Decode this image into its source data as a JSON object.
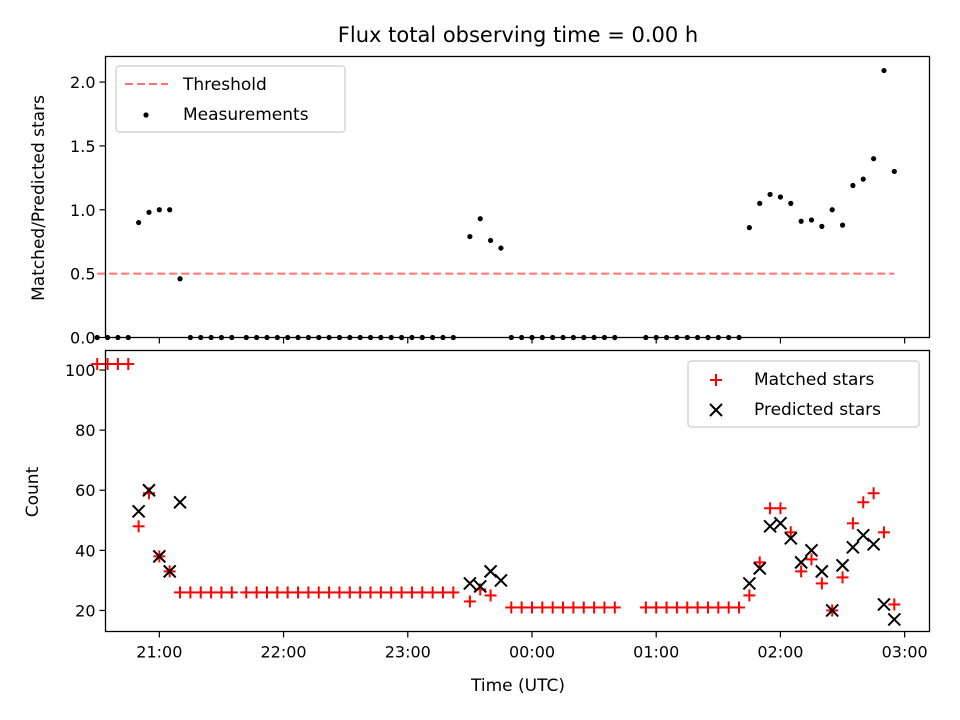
{
  "chart_data": [
    {
      "type": "scatter",
      "title": "Flux total observing time = 0.00 h",
      "xlabel": "",
      "ylabel": "Matched/Predicted stars",
      "ylim": [
        0,
        2.2
      ],
      "yticks": [
        0.0,
        0.5,
        1.0,
        1.5,
        2.0
      ],
      "ytick_labels": [
        "0.0",
        "0.5",
        "1.0",
        "1.5",
        "2.0"
      ],
      "xlim": [
        "20:34",
        "03:12"
      ],
      "xticks": [
        "21:00",
        "22:00",
        "23:00",
        "00:00",
        "01:00",
        "02:00",
        "03:00"
      ],
      "legend": "upper-left",
      "threshold": {
        "name": "Threshold",
        "color": "#ff7070",
        "value": 0.5,
        "x": [
          "20:30",
          "02:55"
        ]
      },
      "series": [
        {
          "name": "Measurements",
          "color": "#000000",
          "points": [
            [
              "20:30",
              0
            ],
            [
              "20:35",
              0
            ],
            [
              "20:40",
              0
            ],
            [
              "20:45",
              0
            ],
            [
              "20:50",
              0.9
            ],
            [
              "20:55",
              0.98
            ],
            [
              "21:00",
              1.0
            ],
            [
              "21:05",
              1.0
            ],
            [
              "21:10",
              0.46
            ],
            [
              "21:15",
              0
            ],
            [
              "21:20",
              0
            ],
            [
              "21:25",
              0
            ],
            [
              "21:30",
              0
            ],
            [
              "21:35",
              0
            ],
            [
              "21:42",
              0
            ],
            [
              "21:47",
              0
            ],
            [
              "21:52",
              0
            ],
            [
              "21:57",
              0
            ],
            [
              "22:02",
              0
            ],
            [
              "22:07",
              0
            ],
            [
              "22:12",
              0
            ],
            [
              "22:17",
              0
            ],
            [
              "22:22",
              0
            ],
            [
              "22:27",
              0
            ],
            [
              "22:32",
              0
            ],
            [
              "22:37",
              0
            ],
            [
              "22:42",
              0
            ],
            [
              "22:47",
              0
            ],
            [
              "22:52",
              0
            ],
            [
              "22:57",
              0
            ],
            [
              "23:02",
              0
            ],
            [
              "23:07",
              0
            ],
            [
              "23:12",
              0
            ],
            [
              "23:17",
              0
            ],
            [
              "23:22",
              0
            ],
            [
              "23:30",
              0.79
            ],
            [
              "23:35",
              0.93
            ],
            [
              "23:40",
              0.76
            ],
            [
              "23:45",
              0.7
            ],
            [
              "23:50",
              0
            ],
            [
              "23:55",
              0
            ],
            [
              "00:00",
              0
            ],
            [
              "00:05",
              0
            ],
            [
              "00:10",
              0
            ],
            [
              "00:15",
              0
            ],
            [
              "00:20",
              0
            ],
            [
              "00:25",
              0
            ],
            [
              "00:30",
              0
            ],
            [
              "00:35",
              0
            ],
            [
              "00:40",
              0
            ],
            [
              "00:55",
              0
            ],
            [
              "01:00",
              0
            ],
            [
              "01:05",
              0
            ],
            [
              "01:10",
              0
            ],
            [
              "01:15",
              0
            ],
            [
              "01:20",
              0
            ],
            [
              "01:25",
              0
            ],
            [
              "01:30",
              0
            ],
            [
              "01:35",
              0
            ],
            [
              "01:40",
              0
            ],
            [
              "01:45",
              0.86
            ],
            [
              "01:50",
              1.05
            ],
            [
              "01:55",
              1.12
            ],
            [
              "02:00",
              1.1
            ],
            [
              "02:05",
              1.05
            ],
            [
              "02:10",
              0.91
            ],
            [
              "02:15",
              0.92
            ],
            [
              "02:20",
              0.87
            ],
            [
              "02:25",
              1.0
            ],
            [
              "02:30",
              0.88
            ],
            [
              "02:35",
              1.19
            ],
            [
              "02:40",
              1.24
            ],
            [
              "02:45",
              1.4
            ],
            [
              "02:50",
              2.09
            ],
            [
              "02:55",
              1.3
            ]
          ]
        }
      ]
    },
    {
      "type": "scatter",
      "title": "",
      "xlabel": "Time (UTC)",
      "ylabel": "Count",
      "ylim": [
        13,
        106.5
      ],
      "yticks": [
        20,
        40,
        60,
        80,
        100
      ],
      "ytick_labels": [
        "20",
        "40",
        "60",
        "80",
        "100"
      ],
      "xlim": [
        "20:34",
        "03:12"
      ],
      "xticks": [
        "21:00",
        "22:00",
        "23:00",
        "00:00",
        "01:00",
        "02:00",
        "03:00"
      ],
      "xtick_labels": [
        "21:00",
        "22:00",
        "23:00",
        "00:00",
        "01:00",
        "02:00",
        "03:00"
      ],
      "legend": "upper-right",
      "series": [
        {
          "name": "Matched stars",
          "marker": "+",
          "color": "#ff0000",
          "points": [
            [
              "20:30",
              102
            ],
            [
              "20:35",
              102
            ],
            [
              "20:40",
              102
            ],
            [
              "20:45",
              102
            ],
            [
              "20:50",
              48
            ],
            [
              "20:55",
              59
            ],
            [
              "21:00",
              38
            ],
            [
              "21:05",
              33
            ],
            [
              "21:10",
              26
            ],
            [
              "21:15",
              26
            ],
            [
              "21:20",
              26
            ],
            [
              "21:25",
              26
            ],
            [
              "21:30",
              26
            ],
            [
              "21:35",
              26
            ],
            [
              "21:42",
              26
            ],
            [
              "21:47",
              26
            ],
            [
              "21:52",
              26
            ],
            [
              "21:57",
              26
            ],
            [
              "22:02",
              26
            ],
            [
              "22:07",
              26
            ],
            [
              "22:12",
              26
            ],
            [
              "22:17",
              26
            ],
            [
              "22:22",
              26
            ],
            [
              "22:27",
              26
            ],
            [
              "22:32",
              26
            ],
            [
              "22:37",
              26
            ],
            [
              "22:42",
              26
            ],
            [
              "22:47",
              26
            ],
            [
              "22:52",
              26
            ],
            [
              "22:57",
              26
            ],
            [
              "23:02",
              26
            ],
            [
              "23:07",
              26
            ],
            [
              "23:12",
              26
            ],
            [
              "23:17",
              26
            ],
            [
              "23:22",
              26
            ],
            [
              "23:30",
              23
            ],
            [
              "23:35",
              27
            ],
            [
              "23:40",
              25
            ],
            [
              "23:50",
              21
            ],
            [
              "23:55",
              21
            ],
            [
              "00:00",
              21
            ],
            [
              "00:05",
              21
            ],
            [
              "00:10",
              21
            ],
            [
              "00:15",
              21
            ],
            [
              "00:20",
              21
            ],
            [
              "00:25",
              21
            ],
            [
              "00:30",
              21
            ],
            [
              "00:35",
              21
            ],
            [
              "00:40",
              21
            ],
            [
              "00:55",
              21
            ],
            [
              "01:00",
              21
            ],
            [
              "01:05",
              21
            ],
            [
              "01:10",
              21
            ],
            [
              "01:15",
              21
            ],
            [
              "01:20",
              21
            ],
            [
              "01:25",
              21
            ],
            [
              "01:30",
              21
            ],
            [
              "01:35",
              21
            ],
            [
              "01:40",
              21
            ],
            [
              "01:45",
              25
            ],
            [
              "01:50",
              36
            ],
            [
              "01:55",
              54
            ],
            [
              "02:00",
              54
            ],
            [
              "02:05",
              46
            ],
            [
              "02:10",
              33
            ],
            [
              "02:15",
              37
            ],
            [
              "02:20",
              29
            ],
            [
              "02:25",
              20
            ],
            [
              "02:30",
              31
            ],
            [
              "02:35",
              49
            ],
            [
              "02:40",
              56
            ],
            [
              "02:45",
              59
            ],
            [
              "02:50",
              46
            ],
            [
              "02:55",
              22
            ]
          ]
        },
        {
          "name": "Predicted stars",
          "marker": "x",
          "color": "#000000",
          "points": [
            [
              "20:50",
              53
            ],
            [
              "20:55",
              60
            ],
            [
              "21:00",
              38
            ],
            [
              "21:05",
              33
            ],
            [
              "21:10",
              56
            ],
            [
              "23:30",
              29
            ],
            [
              "23:35",
              28
            ],
            [
              "23:40",
              33
            ],
            [
              "23:45",
              30
            ],
            [
              "01:45",
              29
            ],
            [
              "01:50",
              34
            ],
            [
              "01:55",
              48
            ],
            [
              "02:00",
              49
            ],
            [
              "02:05",
              44
            ],
            [
              "02:10",
              36
            ],
            [
              "02:15",
              40
            ],
            [
              "02:20",
              33
            ],
            [
              "02:25",
              20
            ],
            [
              "02:30",
              35
            ],
            [
              "02:35",
              41
            ],
            [
              "02:40",
              45
            ],
            [
              "02:45",
              42
            ],
            [
              "02:50",
              22
            ],
            [
              "02:55",
              17
            ]
          ]
        }
      ]
    }
  ]
}
